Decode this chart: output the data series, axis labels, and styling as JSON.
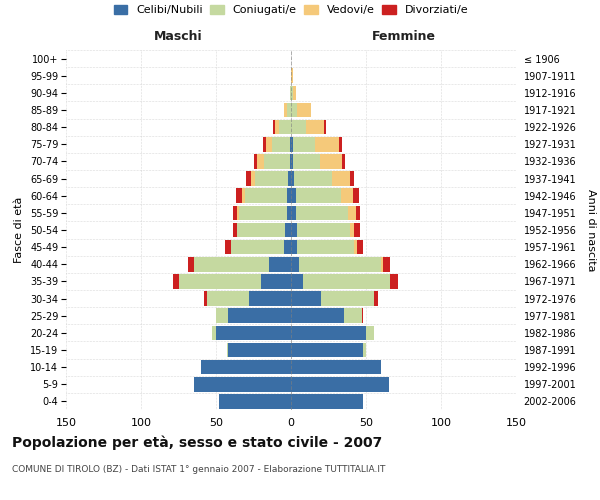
{
  "age_groups": [
    "0-4",
    "5-9",
    "10-14",
    "15-19",
    "20-24",
    "25-29",
    "30-34",
    "35-39",
    "40-44",
    "45-49",
    "50-54",
    "55-59",
    "60-64",
    "65-69",
    "70-74",
    "75-79",
    "80-84",
    "85-89",
    "90-94",
    "95-99",
    "100+"
  ],
  "birth_years": [
    "2002-2006",
    "1997-2001",
    "1992-1996",
    "1987-1991",
    "1982-1986",
    "1977-1981",
    "1972-1976",
    "1967-1971",
    "1962-1966",
    "1957-1961",
    "1952-1956",
    "1947-1951",
    "1942-1946",
    "1937-1941",
    "1932-1936",
    "1927-1931",
    "1922-1926",
    "1917-1921",
    "1912-1916",
    "1907-1911",
    "≤ 1906"
  ],
  "colors": {
    "celibi": "#3a6ea5",
    "coniugati": "#c5d9a0",
    "vedovi": "#f5c97a",
    "divorziati": "#cc2020"
  },
  "males": {
    "celibi": [
      48,
      65,
      60,
      42,
      50,
      42,
      28,
      20,
      15,
      5,
      4,
      3,
      3,
      2,
      1,
      1,
      0,
      0,
      0,
      0,
      0
    ],
    "coniugati": [
      0,
      0,
      0,
      1,
      3,
      8,
      28,
      55,
      50,
      35,
      32,
      32,
      28,
      22,
      17,
      12,
      8,
      3,
      1,
      0,
      0
    ],
    "vedovi": [
      0,
      0,
      0,
      0,
      0,
      0,
      0,
      0,
      0,
      0,
      0,
      1,
      2,
      3,
      5,
      4,
      3,
      2,
      0,
      0,
      0
    ],
    "divorziati": [
      0,
      0,
      0,
      0,
      0,
      0,
      2,
      4,
      4,
      4,
      3,
      3,
      4,
      3,
      2,
      2,
      1,
      0,
      0,
      0,
      0
    ]
  },
  "females": {
    "nubili": [
      48,
      65,
      60,
      48,
      50,
      35,
      20,
      8,
      5,
      4,
      4,
      3,
      3,
      2,
      1,
      1,
      0,
      0,
      0,
      0,
      0
    ],
    "coniugate": [
      0,
      0,
      0,
      2,
      5,
      12,
      35,
      58,
      55,
      38,
      35,
      35,
      30,
      25,
      18,
      15,
      10,
      4,
      1,
      0,
      0
    ],
    "vedove": [
      0,
      0,
      0,
      0,
      0,
      0,
      0,
      0,
      1,
      2,
      3,
      5,
      8,
      12,
      15,
      16,
      12,
      9,
      2,
      1,
      0
    ],
    "divorziate": [
      0,
      0,
      0,
      0,
      0,
      1,
      3,
      5,
      5,
      4,
      4,
      3,
      4,
      3,
      2,
      2,
      1,
      0,
      0,
      0,
      0
    ]
  },
  "xlim": 150,
  "title": "Popolazione per età, sesso e stato civile - 2007",
  "subtitle": "COMUNE DI TIROLO (BZ) - Dati ISTAT 1° gennaio 2007 - Elaborazione TUTTITALIA.IT",
  "xlabel_left": "Maschi",
  "xlabel_right": "Femmine",
  "ylabel_left": "Fasce di età",
  "ylabel_right": "Anni di nascita",
  "legend_labels": [
    "Celibi/Nubili",
    "Coniugati/e",
    "Vedovi/e",
    "Divorziati/e"
  ],
  "xtick_positions": [
    -150,
    -100,
    -50,
    0,
    50,
    100,
    150
  ],
  "xtick_labels": [
    "150",
    "100",
    "50",
    "0",
    "50",
    "100",
    "150"
  ],
  "bg_color": "#ffffff",
  "grid_color": "#bbbbbb"
}
